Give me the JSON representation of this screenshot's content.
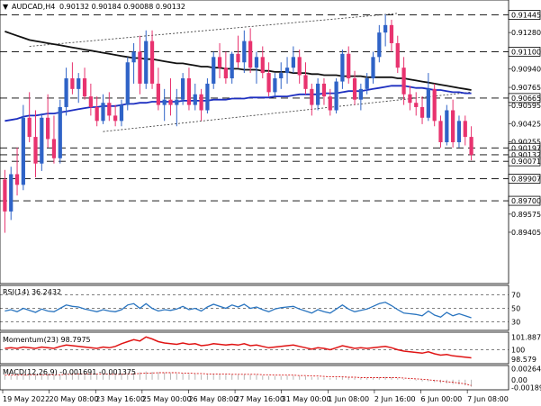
{
  "header": {
    "symbol": "AUDCAD,H4",
    "ohlc": "0.90132 0.90184 0.90088 0.90132"
  },
  "colors": {
    "bull": "#2f63c7",
    "bear": "#e8336f",
    "ma_fast": "#1d2fc0",
    "ma_slow": "#111111",
    "rsi": "#2a75c0",
    "momentum": "#e01414",
    "macd": "#d61a1a",
    "grid": "#000000"
  },
  "chart_data": [
    {
      "type": "candlestick",
      "title": "AUDCAD,H4",
      "ylim": [
        0.8894,
        0.9156
      ],
      "y_ticks": [
        "0.91445",
        "0.91280",
        "0.91100",
        "0.90940",
        "0.90765",
        "0.90665",
        "0.90595",
        "0.90425",
        "0.90255",
        "0.90197",
        "0.90132",
        "0.90071",
        "0.89907",
        "0.89700",
        "0.89575",
        "0.89405"
      ],
      "x_tick_labels": [
        "19 May 2022",
        "20 May 08:00",
        "23 May 16:00",
        "25 May 00:00",
        "26 May 08:00",
        "27 May 16:00",
        "31 May 00:00",
        "1 Jun 08:00",
        "2 Jun 16:00",
        "6 Jun 00:00",
        "7 Jun 08:00"
      ],
      "levels": [
        {
          "label": "0.91445",
          "value": 0.91445,
          "boxed": true
        },
        {
          "label": "0.91100",
          "value": 0.911,
          "boxed": true
        },
        {
          "label": "0.90665",
          "value": 0.90665,
          "boxed": true
        },
        {
          "label": "0.90197",
          "value": 0.90197,
          "boxed": true
        },
        {
          "label": "0.90132",
          "value": 0.90132,
          "boxed": true
        },
        {
          "label": "0.90071",
          "value": 0.90071,
          "boxed": true
        },
        {
          "label": "0.89907",
          "value": 0.89907,
          "boxed": true
        },
        {
          "label": "0.89700",
          "value": 0.897,
          "boxed": true
        }
      ],
      "candles": [
        [
          0.899,
          0.8999,
          0.894,
          0.896
        ],
        [
          0.896,
          0.9002,
          0.8952,
          0.8995
        ],
        [
          0.8995,
          0.902,
          0.8975,
          0.8985
        ],
        [
          0.8985,
          0.906,
          0.898,
          0.9048
        ],
        [
          0.9048,
          0.9072,
          0.9025,
          0.903
        ],
        [
          0.903,
          0.9055,
          0.8992,
          0.9005
        ],
        [
          0.9005,
          0.9052,
          0.8998,
          0.9048
        ],
        [
          0.9048,
          0.907,
          0.902,
          0.9028
        ],
        [
          0.9028,
          0.905,
          0.9005,
          0.901
        ],
        [
          0.901,
          0.9065,
          0.9005,
          0.9058
        ],
        [
          0.9058,
          0.9095,
          0.905,
          0.9085
        ],
        [
          0.9085,
          0.91,
          0.907,
          0.9075
        ],
        [
          0.9075,
          0.909,
          0.9062,
          0.9085
        ],
        [
          0.9085,
          0.9095,
          0.9065,
          0.9068
        ],
        [
          0.9068,
          0.908,
          0.905,
          0.9058
        ],
        [
          0.9058,
          0.9068,
          0.904,
          0.9045
        ],
        [
          0.9045,
          0.907,
          0.9042,
          0.9062
        ],
        [
          0.9062,
          0.9072,
          0.9045,
          0.905
        ],
        [
          0.905,
          0.906,
          0.904,
          0.9045
        ],
        [
          0.9045,
          0.9065,
          0.904,
          0.906
        ],
        [
          0.906,
          0.9105,
          0.9055,
          0.91
        ],
        [
          0.91,
          0.9118,
          0.908,
          0.911
        ],
        [
          0.911,
          0.9125,
          0.907,
          0.908
        ],
        [
          0.908,
          0.913,
          0.9075,
          0.912
        ],
        [
          0.912,
          0.913,
          0.9075,
          0.908
        ],
        [
          0.908,
          0.9095,
          0.9055,
          0.906
        ],
        [
          0.906,
          0.9075,
          0.9045,
          0.9065
        ],
        [
          0.9065,
          0.9085,
          0.905,
          0.906
        ],
        [
          0.906,
          0.9075,
          0.904,
          0.9065
        ],
        [
          0.9065,
          0.909,
          0.906,
          0.9085
        ],
        [
          0.9085,
          0.9095,
          0.9055,
          0.906
        ],
        [
          0.906,
          0.908,
          0.9055,
          0.907
        ],
        [
          0.907,
          0.9075,
          0.9045,
          0.9055
        ],
        [
          0.9055,
          0.9085,
          0.9052,
          0.908
        ],
        [
          0.908,
          0.911,
          0.9075,
          0.9105
        ],
        [
          0.9105,
          0.9118,
          0.9085,
          0.9095
        ],
        [
          0.9095,
          0.911,
          0.908,
          0.9085
        ],
        [
          0.9085,
          0.911,
          0.908,
          0.9108
        ],
        [
          0.9108,
          0.9125,
          0.9095,
          0.91
        ],
        [
          0.91,
          0.913,
          0.909,
          0.912
        ],
        [
          0.912,
          0.9132,
          0.909,
          0.9095
        ],
        [
          0.9095,
          0.911,
          0.908,
          0.9105
        ],
        [
          0.9105,
          0.9115,
          0.9085,
          0.909
        ],
        [
          0.909,
          0.91,
          0.9068,
          0.9072
        ],
        [
          0.9072,
          0.909,
          0.9068,
          0.9085
        ],
        [
          0.9085,
          0.91,
          0.9075,
          0.909
        ],
        [
          0.909,
          0.9105,
          0.908,
          0.9095
        ],
        [
          0.9095,
          0.9115,
          0.909,
          0.9105
        ],
        [
          0.9105,
          0.9112,
          0.908,
          0.9088
        ],
        [
          0.9088,
          0.91,
          0.907,
          0.9075
        ],
        [
          0.9075,
          0.908,
          0.905,
          0.906
        ],
        [
          0.906,
          0.9085,
          0.9055,
          0.908
        ],
        [
          0.908,
          0.9085,
          0.906,
          0.9068
        ],
        [
          0.9068,
          0.9075,
          0.905,
          0.9055
        ],
        [
          0.9055,
          0.9085,
          0.9052,
          0.9082
        ],
        [
          0.9082,
          0.9112,
          0.9075,
          0.9108
        ],
        [
          0.9108,
          0.9115,
          0.908,
          0.9085
        ],
        [
          0.9085,
          0.9092,
          0.906,
          0.9065
        ],
        [
          0.9065,
          0.908,
          0.9055,
          0.9075
        ],
        [
          0.9075,
          0.909,
          0.907,
          0.9085
        ],
        [
          0.9085,
          0.911,
          0.908,
          0.9105
        ],
        [
          0.9105,
          0.9135,
          0.91,
          0.9128
        ],
        [
          0.9128,
          0.9145,
          0.9115,
          0.9135
        ],
        [
          0.9135,
          0.914,
          0.911,
          0.9118
        ],
        [
          0.9118,
          0.9125,
          0.909,
          0.9095
        ],
        [
          0.9095,
          0.9105,
          0.906,
          0.907
        ],
        [
          0.907,
          0.9078,
          0.9055,
          0.9062
        ],
        [
          0.9062,
          0.9072,
          0.905,
          0.9058
        ],
        [
          0.9058,
          0.9068,
          0.9042,
          0.9048
        ],
        [
          0.9048,
          0.909,
          0.9045,
          0.9075
        ],
        [
          0.9075,
          0.908,
          0.904,
          0.9045
        ],
        [
          0.9045,
          0.905,
          0.902,
          0.9025
        ],
        [
          0.9025,
          0.906,
          0.9022,
          0.9055
        ],
        [
          0.9055,
          0.9065,
          0.902,
          0.9025
        ],
        [
          0.9025,
          0.905,
          0.902,
          0.9045
        ],
        [
          0.9045,
          0.905,
          0.9022,
          0.903
        ],
        [
          0.903,
          0.904,
          0.9008,
          0.9013
        ]
      ],
      "ma_slow": [
        0.9129,
        0.9127,
        0.9125,
        0.9123,
        0.9121,
        0.912,
        0.9119,
        0.9118,
        0.9117,
        0.9116,
        0.9115,
        0.9114,
        0.9113,
        0.9112,
        0.9111,
        0.911,
        0.9109,
        0.9108,
        0.9107,
        0.9106,
        0.9105,
        0.9104,
        0.9104,
        0.9103,
        0.9103,
        0.9102,
        0.9101,
        0.91,
        0.9099,
        0.9099,
        0.9098,
        0.9097,
        0.9096,
        0.9096,
        0.9095,
        0.9095,
        0.9094,
        0.9094,
        0.9094,
        0.9093,
        0.9093,
        0.9093,
        0.9092,
        0.9092,
        0.9091,
        0.9091,
        0.9091,
        0.909,
        0.909,
        0.909,
        0.9089,
        0.9089,
        0.9088,
        0.9088,
        0.9088,
        0.9087,
        0.9087,
        0.9087,
        0.9087,
        0.9086,
        0.9086,
        0.9086,
        0.9086,
        0.9086,
        0.9085,
        0.9085,
        0.9084,
        0.9083,
        0.9082,
        0.9081,
        0.908,
        0.9079,
        0.9078,
        0.9077,
        0.9076,
        0.9075,
        0.9074
      ],
      "ma_fast": [
        0.9045,
        0.9046,
        0.9047,
        0.9049,
        0.905,
        0.905,
        0.9051,
        0.9052,
        0.9052,
        0.9053,
        0.9054,
        0.9055,
        0.9056,
        0.9057,
        0.9058,
        0.9058,
        0.9059,
        0.9059,
        0.9059,
        0.906,
        0.9061,
        0.9061,
        0.9062,
        0.9062,
        0.9063,
        0.9063,
        0.9063,
        0.9063,
        0.9063,
        0.9064,
        0.9064,
        0.9064,
        0.9064,
        0.9064,
        0.9065,
        0.9065,
        0.9065,
        0.9066,
        0.9066,
        0.9066,
        0.9067,
        0.9067,
        0.9067,
        0.9067,
        0.9068,
        0.9068,
        0.9068,
        0.9069,
        0.907,
        0.907,
        0.907,
        0.907,
        0.9071,
        0.9071,
        0.9071,
        0.9072,
        0.9073,
        0.9073,
        0.9073,
        0.9074,
        0.9075,
        0.9076,
        0.9077,
        0.9078,
        0.9078,
        0.9078,
        0.9077,
        0.9076,
        0.9076,
        0.9075,
        0.9074,
        0.9074,
        0.9073,
        0.9072,
        0.9072,
        0.9071,
        0.9071
      ],
      "trendlines": [
        {
          "x": [
            4,
            64
          ],
          "y": [
            0.9115,
            0.9146
          ]
        },
        {
          "x": [
            16,
            76
          ],
          "y": [
            0.9035,
            0.9072
          ]
        }
      ]
    },
    {
      "type": "line",
      "title": "RSI(14) 36.2432",
      "ylim": [
        20,
        80
      ],
      "levels": [
        {
          "label": "70",
          "value": 70
        },
        {
          "label": "50",
          "value": 50
        },
        {
          "label": "30",
          "value": 30
        }
      ],
      "series": [
        {
          "name": "RSI(14)",
          "values": [
            46,
            48,
            45,
            50,
            47,
            44,
            49,
            46,
            45,
            50,
            55,
            53,
            52,
            49,
            47,
            45,
            48,
            46,
            45,
            48,
            55,
            57,
            50,
            57,
            50,
            46,
            48,
            47,
            49,
            53,
            48,
            50,
            46,
            52,
            56,
            53,
            50,
            55,
            52,
            56,
            50,
            52,
            48,
            45,
            49,
            51,
            52,
            53,
            49,
            46,
            43,
            48,
            45,
            43,
            49,
            55,
            49,
            45,
            47,
            49,
            53,
            57,
            59,
            54,
            48,
            43,
            42,
            41,
            39,
            46,
            40,
            37,
            44,
            39,
            42,
            39,
            36
          ]
        }
      ]
    },
    {
      "type": "line",
      "title": "Momentum(23) 98.7975",
      "ylim": [
        98.2,
        102.2
      ],
      "y_ticks": [
        "101.8876",
        "100",
        "98.579"
      ],
      "series": [
        {
          "name": "Momentum(23)",
          "values": [
            100.2,
            100.3,
            100.2,
            100.4,
            100.3,
            100.2,
            100.4,
            100.3,
            100.2,
            100.5,
            100.7,
            100.6,
            100.5,
            100.4,
            100.3,
            100.2,
            100.4,
            100.3,
            100.5,
            100.9,
            101.2,
            101.5,
            101.3,
            101.9,
            101.6,
            101.2,
            101.0,
            100.9,
            100.8,
            101.0,
            100.8,
            100.9,
            100.6,
            100.7,
            100.9,
            100.8,
            100.7,
            100.8,
            100.7,
            100.9,
            100.6,
            100.7,
            100.5,
            100.3,
            100.4,
            100.5,
            100.6,
            100.7,
            100.5,
            100.3,
            100.1,
            100.3,
            100.2,
            100.0,
            100.3,
            100.6,
            100.4,
            100.2,
            100.3,
            100.2,
            100.3,
            100.4,
            100.5,
            100.3,
            100.0,
            99.8,
            99.7,
            99.6,
            99.5,
            99.7,
            99.4,
            99.2,
            99.3,
            99.1,
            99.0,
            98.9,
            98.8
          ]
        }
      ]
    },
    {
      "type": "line",
      "title": "MACD(12,26,9) -0.001691 -0.001375",
      "ylim": [
        -0.002,
        0.003
      ],
      "y_ticks": [
        "0.002647",
        "0.00",
        "-0.001898"
      ],
      "series": [
        {
          "name": "MACD",
          "values": [
            0.001,
            0.0011,
            0.0012,
            0.0013,
            0.0013,
            0.0012,
            0.0013,
            0.0013,
            0.0012,
            0.0013,
            0.0015,
            0.0016,
            0.0016,
            0.0015,
            0.0014,
            0.0013,
            0.0013,
            0.0012,
            0.0012,
            0.0013,
            0.0015,
            0.0017,
            0.0018,
            0.002,
            0.0019,
            0.0018,
            0.0017,
            0.0016,
            0.0015,
            0.0015,
            0.0014,
            0.0014,
            0.0012,
            0.0012,
            0.0013,
            0.0013,
            0.0012,
            0.0013,
            0.0012,
            0.0013,
            0.0012,
            0.0012,
            0.001,
            0.0009,
            0.0009,
            0.0009,
            0.001,
            0.001,
            0.0009,
            0.0008,
            0.0006,
            0.0006,
            0.0005,
            0.0004,
            0.0005,
            0.0006,
            0.0005,
            0.0004,
            0.0004,
            0.0004,
            0.0005,
            0.0006,
            0.0007,
            0.0006,
            0.0004,
            0.0002,
            0.0,
            -0.0002,
            -0.0004,
            -0.0004,
            -0.0006,
            -0.0008,
            -0.0009,
            -0.0011,
            -0.0012,
            -0.0014,
            -0.0017
          ]
        },
        {
          "name": "Signal",
          "values": [
            0.0011,
            0.0011,
            0.0011,
            0.0012,
            0.0012,
            0.0012,
            0.0012,
            0.0012,
            0.0012,
            0.0012,
            0.0013,
            0.0013,
            0.0014,
            0.0014,
            0.0014,
            0.0014,
            0.0014,
            0.0013,
            0.0013,
            0.0013,
            0.0014,
            0.0014,
            0.0015,
            0.0016,
            0.0016,
            0.0017,
            0.0017,
            0.0017,
            0.0017,
            0.0016,
            0.0016,
            0.0015,
            0.0015,
            0.0014,
            0.0014,
            0.0014,
            0.0014,
            0.0013,
            0.0013,
            0.0013,
            0.0013,
            0.0013,
            0.0012,
            0.0012,
            0.0011,
            0.0011,
            0.0011,
            0.0011,
            0.001,
            0.001,
            0.0009,
            0.0009,
            0.0008,
            0.0007,
            0.0007,
            0.0007,
            0.0006,
            0.0006,
            0.0005,
            0.0005,
            0.0005,
            0.0005,
            0.0005,
            0.0005,
            0.0005,
            0.0004,
            0.0003,
            0.0002,
            0.0001,
            0.0,
            -0.0002,
            -0.0003,
            -0.0005,
            -0.0006,
            -0.0008,
            -0.001,
            -0.0014
          ]
        }
      ]
    }
  ]
}
